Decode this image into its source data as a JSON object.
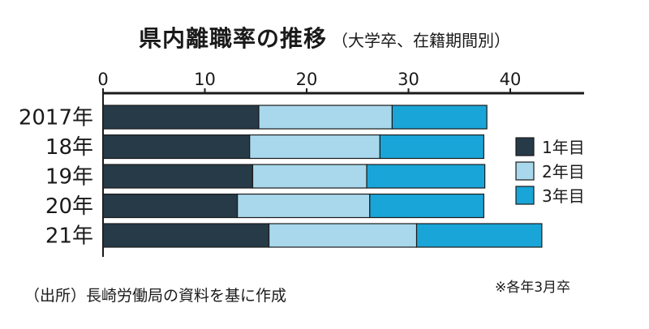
{
  "title": "県内離職率の推移",
  "subtitle": "（大学卒、在籍期間別）",
  "source": "（出所）長崎労働局の資料を基に作成",
  "note": "※各年3月卒",
  "chart_data": {
    "type": "bar",
    "orientation": "horizontal",
    "stacked": true,
    "categories": [
      "2017年",
      "18年",
      "19年",
      "20年",
      "21年"
    ],
    "xlim": [
      0,
      47
    ],
    "xticks": [
      0,
      10,
      20,
      30,
      40
    ],
    "axis_position": "top",
    "grid": false,
    "legend_position": "right",
    "series": [
      {
        "name": "1年目",
        "color": "#263a47",
        "values": [
          15.3,
          14.4,
          14.7,
          13.2,
          16.3
        ]
      },
      {
        "name": "2年目",
        "color": "#a9d8ec",
        "values": [
          13.1,
          12.8,
          11.2,
          13.0,
          14.5
        ]
      },
      {
        "name": "3年目",
        "color": "#1aa5d8",
        "values": [
          9.3,
          10.2,
          11.6,
          11.2,
          12.3
        ]
      }
    ]
  }
}
